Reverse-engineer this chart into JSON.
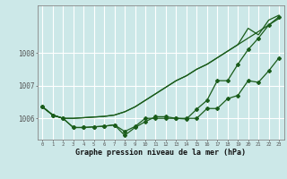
{
  "xlabel": "Graphe pression niveau de la mer (hPa)",
  "background_color": "#cce8e8",
  "grid_color": "#ffffff",
  "line_color": "#1a5c1a",
  "hours": [
    0,
    1,
    2,
    3,
    4,
    5,
    6,
    7,
    8,
    9,
    10,
    11,
    12,
    13,
    14,
    15,
    16,
    17,
    18,
    19,
    20,
    21,
    22,
    23
  ],
  "line1": [
    1006.35,
    1006.1,
    1006.0,
    1006.0,
    1006.02,
    1006.04,
    1006.06,
    1006.1,
    1006.2,
    1006.35,
    1006.55,
    1006.75,
    1006.95,
    1007.15,
    1007.3,
    1007.5,
    1007.65,
    1007.85,
    1008.05,
    1008.25,
    1008.45,
    1008.65,
    1008.85,
    1009.05
  ],
  "line2": [
    1006.35,
    1006.1,
    1006.0,
    1006.0,
    1006.02,
    1006.04,
    1006.06,
    1006.1,
    1006.2,
    1006.35,
    1006.55,
    1006.75,
    1006.95,
    1007.15,
    1007.3,
    1007.5,
    1007.65,
    1007.85,
    1008.05,
    1008.25,
    1008.75,
    1008.55,
    1009.0,
    1009.15
  ],
  "line3": [
    1006.35,
    1006.1,
    1006.0,
    1005.72,
    1005.72,
    1005.74,
    1005.76,
    1005.8,
    1005.6,
    1005.75,
    1006.0,
    1006.0,
    1006.0,
    1006.0,
    1006.0,
    1006.0,
    1006.3,
    1006.3,
    1006.6,
    1006.7,
    1007.15,
    1007.1,
    1007.45,
    1007.85
  ],
  "line4": [
    1006.35,
    1006.1,
    1006.0,
    1005.72,
    1005.72,
    1005.74,
    1005.76,
    1005.8,
    1005.48,
    1005.72,
    1005.9,
    1006.05,
    1006.05,
    1006.0,
    1005.98,
    1006.28,
    1006.55,
    1007.15,
    1007.15,
    1007.65,
    1008.1,
    1008.45,
    1008.85,
    1009.1
  ],
  "ylim_min": 1005.35,
  "ylim_max": 1009.45,
  "ytick_labels": [
    "1006",
    "1007",
    "1008"
  ],
  "ytick_vals": [
    1006,
    1007,
    1008
  ],
  "xlim_min": -0.5,
  "xlim_max": 23.5
}
